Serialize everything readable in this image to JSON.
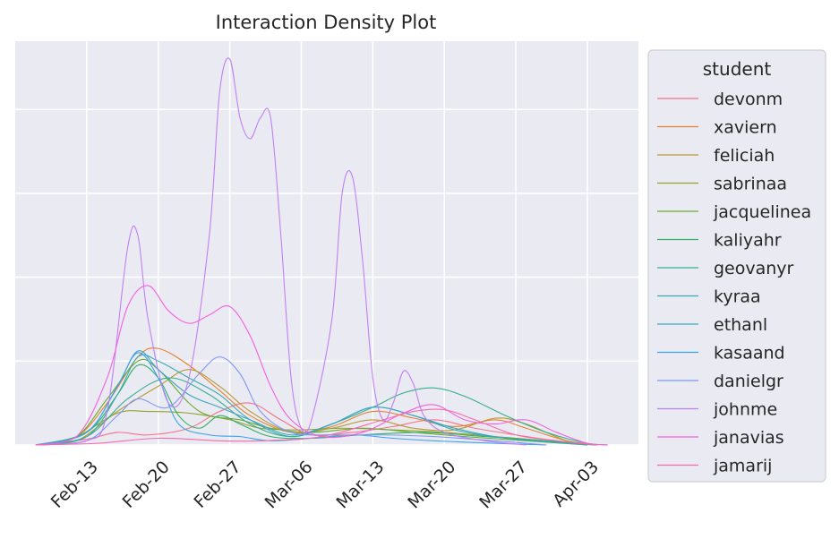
{
  "chart_data": {
    "type": "line",
    "title": "Interaction Density Plot",
    "xlabel": "",
    "ylabel": "",
    "x_axis": {
      "ticks": [
        {
          "date": "2021-02-13",
          "label": "Feb-13"
        },
        {
          "date": "2021-02-20",
          "label": "Feb-20"
        },
        {
          "date": "2021-02-27",
          "label": "Feb-27"
        },
        {
          "date": "2021-03-06",
          "label": "Mar-06"
        },
        {
          "date": "2021-03-13",
          "label": "Mar-13"
        },
        {
          "date": "2021-03-20",
          "label": "Mar-20"
        },
        {
          "date": "2021-03-27",
          "label": "Mar-27"
        },
        {
          "date": "2021-04-03",
          "label": "Apr-03"
        }
      ],
      "xlim": [
        "2021-02-06",
        "2021-04-08"
      ]
    },
    "y_axis": {
      "ylim": [
        0,
        4.6
      ],
      "gridlines": [
        0,
        1,
        2,
        3,
        4
      ],
      "tick_labels_shown": false
    },
    "grid": true,
    "legend": {
      "title": "student",
      "placement": "outside-right"
    },
    "series": [
      {
        "name": "devonm",
        "color": "#f77189",
        "values": [
          [
            "2021-02-08",
            0
          ],
          [
            "2021-02-13",
            0.07
          ],
          [
            "2021-02-16",
            0.15
          ],
          [
            "2021-02-19",
            0.12
          ],
          [
            "2021-02-23",
            0.2
          ],
          [
            "2021-02-26",
            0.4
          ],
          [
            "2021-03-01",
            0.5
          ],
          [
            "2021-03-04",
            0.3
          ],
          [
            "2021-03-07",
            0.12
          ],
          [
            "2021-03-11",
            0.15
          ],
          [
            "2021-03-15",
            0.22
          ],
          [
            "2021-03-19",
            0.3
          ],
          [
            "2021-03-23",
            0.2
          ],
          [
            "2021-03-27",
            0.12
          ],
          [
            "2021-03-31",
            0.05
          ],
          [
            "2021-04-04",
            0
          ]
        ]
      },
      {
        "name": "xaviern",
        "color": "#e5802d",
        "values": [
          [
            "2021-02-08",
            0
          ],
          [
            "2021-02-12",
            0.1
          ],
          [
            "2021-02-15",
            0.5
          ],
          [
            "2021-02-18",
            1.05
          ],
          [
            "2021-02-20",
            1.15
          ],
          [
            "2021-02-23",
            0.95
          ],
          [
            "2021-02-26",
            0.65
          ],
          [
            "2021-03-01",
            0.35
          ],
          [
            "2021-03-05",
            0.15
          ],
          [
            "2021-03-09",
            0.22
          ],
          [
            "2021-03-13",
            0.4
          ],
          [
            "2021-03-17",
            0.32
          ],
          [
            "2021-03-21",
            0.22
          ],
          [
            "2021-03-25",
            0.3
          ],
          [
            "2021-03-28",
            0.2
          ],
          [
            "2021-04-01",
            0.05
          ],
          [
            "2021-04-04",
            0
          ]
        ]
      },
      {
        "name": "feliciah",
        "color": "#ba9832",
        "values": [
          [
            "2021-02-08",
            0
          ],
          [
            "2021-02-12",
            0.05
          ],
          [
            "2021-02-16",
            0.4
          ],
          [
            "2021-02-20",
            0.7
          ],
          [
            "2021-02-23",
            0.9
          ],
          [
            "2021-02-26",
            0.7
          ],
          [
            "2021-03-01",
            0.4
          ],
          [
            "2021-03-05",
            0.15
          ],
          [
            "2021-03-09",
            0.2
          ],
          [
            "2021-03-13",
            0.3
          ],
          [
            "2021-03-17",
            0.2
          ],
          [
            "2021-03-21",
            0.18
          ],
          [
            "2021-03-25",
            0.32
          ],
          [
            "2021-03-28",
            0.25
          ],
          [
            "2021-04-01",
            0.05
          ],
          [
            "2021-04-04",
            0
          ]
        ]
      },
      {
        "name": "sabrinaa",
        "color": "#96a131",
        "values": [
          [
            "2021-02-08",
            0
          ],
          [
            "2021-02-12",
            0.1
          ],
          [
            "2021-02-16",
            0.38
          ],
          [
            "2021-02-19",
            0.4
          ],
          [
            "2021-02-23",
            0.38
          ],
          [
            "2021-02-27",
            0.3
          ],
          [
            "2021-03-02",
            0.2
          ],
          [
            "2021-03-06",
            0.18
          ],
          [
            "2021-03-10",
            0.2
          ],
          [
            "2021-03-15",
            0.18
          ],
          [
            "2021-03-20",
            0.15
          ],
          [
            "2021-03-25",
            0.1
          ],
          [
            "2021-03-30",
            0.05
          ],
          [
            "2021-04-03",
            0
          ]
        ]
      },
      {
        "name": "jacquelinea",
        "color": "#6aab31",
        "values": [
          [
            "2021-02-08",
            0
          ],
          [
            "2021-02-12",
            0.1
          ],
          [
            "2021-02-15",
            0.55
          ],
          [
            "2021-02-18",
            1.0
          ],
          [
            "2021-02-20",
            0.9
          ],
          [
            "2021-02-23",
            0.5
          ],
          [
            "2021-02-25",
            0.35
          ],
          [
            "2021-02-28",
            0.3
          ],
          [
            "2021-03-03",
            0.2
          ],
          [
            "2021-03-07",
            0.15
          ],
          [
            "2021-03-12",
            0.2
          ],
          [
            "2021-03-17",
            0.15
          ],
          [
            "2021-03-22",
            0.1
          ],
          [
            "2021-03-28",
            0.05
          ],
          [
            "2021-04-03",
            0
          ]
        ]
      },
      {
        "name": "kaliyahr",
        "color": "#32b166",
        "values": [
          [
            "2021-02-08",
            0
          ],
          [
            "2021-02-13",
            0.15
          ],
          [
            "2021-02-16",
            0.6
          ],
          [
            "2021-02-18",
            0.95
          ],
          [
            "2021-02-20",
            0.8
          ],
          [
            "2021-02-22",
            0.35
          ],
          [
            "2021-02-24",
            0.2
          ],
          [
            "2021-02-26",
            0.35
          ],
          [
            "2021-02-28",
            0.25
          ],
          [
            "2021-03-03",
            0.1
          ],
          [
            "2021-03-07",
            0.08
          ],
          [
            "2021-03-12",
            0.12
          ],
          [
            "2021-03-18",
            0.15
          ],
          [
            "2021-03-24",
            0.1
          ],
          [
            "2021-03-30",
            0.05
          ],
          [
            "2021-04-03",
            0
          ]
        ]
      },
      {
        "name": "geovanyr",
        "color": "#36ae8f",
        "values": [
          [
            "2021-02-08",
            0
          ],
          [
            "2021-02-13",
            0.1
          ],
          [
            "2021-02-17",
            0.55
          ],
          [
            "2021-02-21",
            0.8
          ],
          [
            "2021-02-25",
            0.6
          ],
          [
            "2021-03-01",
            0.25
          ],
          [
            "2021-03-05",
            0.1
          ],
          [
            "2021-03-09",
            0.25
          ],
          [
            "2021-03-13",
            0.45
          ],
          [
            "2021-03-16",
            0.62
          ],
          [
            "2021-03-19",
            0.68
          ],
          [
            "2021-03-22",
            0.58
          ],
          [
            "2021-03-26",
            0.35
          ],
          [
            "2021-03-30",
            0.15
          ],
          [
            "2021-04-03",
            0.02
          ],
          [
            "2021-04-05",
            0
          ]
        ]
      },
      {
        "name": "kyraa",
        "color": "#38aaac",
        "values": [
          [
            "2021-02-08",
            0
          ],
          [
            "2021-02-13",
            0.1
          ],
          [
            "2021-02-16",
            0.6
          ],
          [
            "2021-02-18",
            1.05
          ],
          [
            "2021-02-20",
            1.0
          ],
          [
            "2021-02-23",
            0.8
          ],
          [
            "2021-02-26",
            0.6
          ],
          [
            "2021-03-01",
            0.3
          ],
          [
            "2021-03-05",
            0.1
          ],
          [
            "2021-03-09",
            0.25
          ],
          [
            "2021-03-13",
            0.45
          ],
          [
            "2021-03-17",
            0.35
          ],
          [
            "2021-03-21",
            0.18
          ],
          [
            "2021-03-26",
            0.08
          ],
          [
            "2021-04-01",
            0.02
          ],
          [
            "2021-04-04",
            0
          ]
        ]
      },
      {
        "name": "ethanl",
        "color": "#3aa6c3",
        "values": [
          [
            "2021-02-08",
            0
          ],
          [
            "2021-02-13",
            0.15
          ],
          [
            "2021-02-16",
            0.7
          ],
          [
            "2021-02-18",
            1.12
          ],
          [
            "2021-02-20",
            0.9
          ],
          [
            "2021-02-23",
            0.6
          ],
          [
            "2021-02-26",
            0.45
          ],
          [
            "2021-03-01",
            0.3
          ],
          [
            "2021-03-05",
            0.12
          ],
          [
            "2021-03-09",
            0.25
          ],
          [
            "2021-03-13",
            0.45
          ],
          [
            "2021-03-17",
            0.35
          ],
          [
            "2021-03-21",
            0.2
          ],
          [
            "2021-03-26",
            0.08
          ],
          [
            "2021-04-01",
            0.02
          ],
          [
            "2021-04-04",
            0
          ]
        ]
      },
      {
        "name": "kasaand",
        "color": "#3ba3ec",
        "values": [
          [
            "2021-02-08",
            0
          ],
          [
            "2021-02-13",
            0.15
          ],
          [
            "2021-02-16",
            0.7
          ],
          [
            "2021-02-18",
            1.1
          ],
          [
            "2021-02-20",
            0.8
          ],
          [
            "2021-02-22",
            0.25
          ],
          [
            "2021-02-25",
            0.12
          ],
          [
            "2021-02-28",
            0.1
          ],
          [
            "2021-03-03",
            0.05
          ],
          [
            "2021-03-07",
            0.08
          ],
          [
            "2021-03-11",
            0.12
          ],
          [
            "2021-03-15",
            0.08
          ],
          [
            "2021-03-19",
            0.05
          ],
          [
            "2021-03-25",
            0.02
          ],
          [
            "2021-03-30",
            0
          ]
        ]
      },
      {
        "name": "danielgr",
        "color": "#8197f4",
        "values": [
          [
            "2021-02-08",
            0
          ],
          [
            "2021-02-13",
            0.05
          ],
          [
            "2021-02-16",
            0.35
          ],
          [
            "2021-02-18",
            0.55
          ],
          [
            "2021-02-21",
            0.45
          ],
          [
            "2021-02-24",
            0.85
          ],
          [
            "2021-02-26",
            1.05
          ],
          [
            "2021-02-28",
            0.85
          ],
          [
            "2021-03-02",
            0.4
          ],
          [
            "2021-03-05",
            0.15
          ],
          [
            "2021-03-09",
            0.12
          ],
          [
            "2021-03-14",
            0.12
          ],
          [
            "2021-03-19",
            0.1
          ],
          [
            "2021-03-25",
            0.05
          ],
          [
            "2021-03-30",
            0
          ]
        ]
      },
      {
        "name": "johnme",
        "color": "#c17ff4",
        "values": [
          [
            "2021-02-08",
            0
          ],
          [
            "2021-02-13",
            0.05
          ],
          [
            "2021-02-15",
            0.4
          ],
          [
            "2021-02-17",
            2.35
          ],
          [
            "2021-02-18",
            2.5
          ],
          [
            "2021-02-19",
            1.5
          ],
          [
            "2021-02-21",
            0.5
          ],
          [
            "2021-02-23",
            0.8
          ],
          [
            "2021-02-25",
            2.5
          ],
          [
            "2021-02-26",
            4.2
          ],
          [
            "2021-02-27",
            4.6
          ],
          [
            "2021-02-28",
            3.9
          ],
          [
            "2021-03-01",
            3.65
          ],
          [
            "2021-03-02",
            3.9
          ],
          [
            "2021-03-03",
            3.9
          ],
          [
            "2021-03-04",
            2.5
          ],
          [
            "2021-03-05",
            0.8
          ],
          [
            "2021-03-06",
            0.2
          ],
          [
            "2021-03-07",
            0.3
          ],
          [
            "2021-03-09",
            1.5
          ],
          [
            "2021-03-10",
            3.0
          ],
          [
            "2021-03-11",
            3.2
          ],
          [
            "2021-03-12",
            2.2
          ],
          [
            "2021-03-13",
            0.8
          ],
          [
            "2021-03-14",
            0.3
          ],
          [
            "2021-03-15",
            0.5
          ],
          [
            "2021-03-16",
            0.88
          ],
          [
            "2021-03-17",
            0.72
          ],
          [
            "2021-03-18",
            0.35
          ],
          [
            "2021-03-20",
            0.15
          ],
          [
            "2021-03-24",
            0.05
          ],
          [
            "2021-03-28",
            0
          ]
        ]
      },
      {
        "name": "janavias",
        "color": "#f45fe0",
        "values": [
          [
            "2021-02-08",
            0
          ],
          [
            "2021-02-12",
            0.1
          ],
          [
            "2021-02-15",
            0.8
          ],
          [
            "2021-02-17",
            1.65
          ],
          [
            "2021-02-19",
            1.9
          ],
          [
            "2021-02-21",
            1.6
          ],
          [
            "2021-02-23",
            1.45
          ],
          [
            "2021-02-25",
            1.55
          ],
          [
            "2021-02-27",
            1.65
          ],
          [
            "2021-03-01",
            1.3
          ],
          [
            "2021-03-03",
            0.7
          ],
          [
            "2021-03-05",
            0.3
          ],
          [
            "2021-03-08",
            0.1
          ],
          [
            "2021-03-12",
            0.15
          ],
          [
            "2021-03-16",
            0.38
          ],
          [
            "2021-03-19",
            0.48
          ],
          [
            "2021-03-22",
            0.3
          ],
          [
            "2021-03-25",
            0.25
          ],
          [
            "2021-03-28",
            0.3
          ],
          [
            "2021-03-31",
            0.15
          ],
          [
            "2021-04-03",
            0.02
          ],
          [
            "2021-04-05",
            0
          ]
        ]
      },
      {
        "name": "jamarij",
        "color": "#f66bad",
        "values": [
          [
            "2021-02-08",
            0
          ],
          [
            "2021-02-14",
            0.02
          ],
          [
            "2021-02-20",
            0.08
          ],
          [
            "2021-02-26",
            0.05
          ],
          [
            "2021-03-02",
            0.05
          ],
          [
            "2021-03-08",
            0.1
          ],
          [
            "2021-03-14",
            0.3
          ],
          [
            "2021-03-17",
            0.4
          ],
          [
            "2021-03-20",
            0.42
          ],
          [
            "2021-03-23",
            0.3
          ],
          [
            "2021-03-27",
            0.12
          ],
          [
            "2021-03-31",
            0.05
          ],
          [
            "2021-04-04",
            0
          ]
        ]
      }
    ]
  }
}
